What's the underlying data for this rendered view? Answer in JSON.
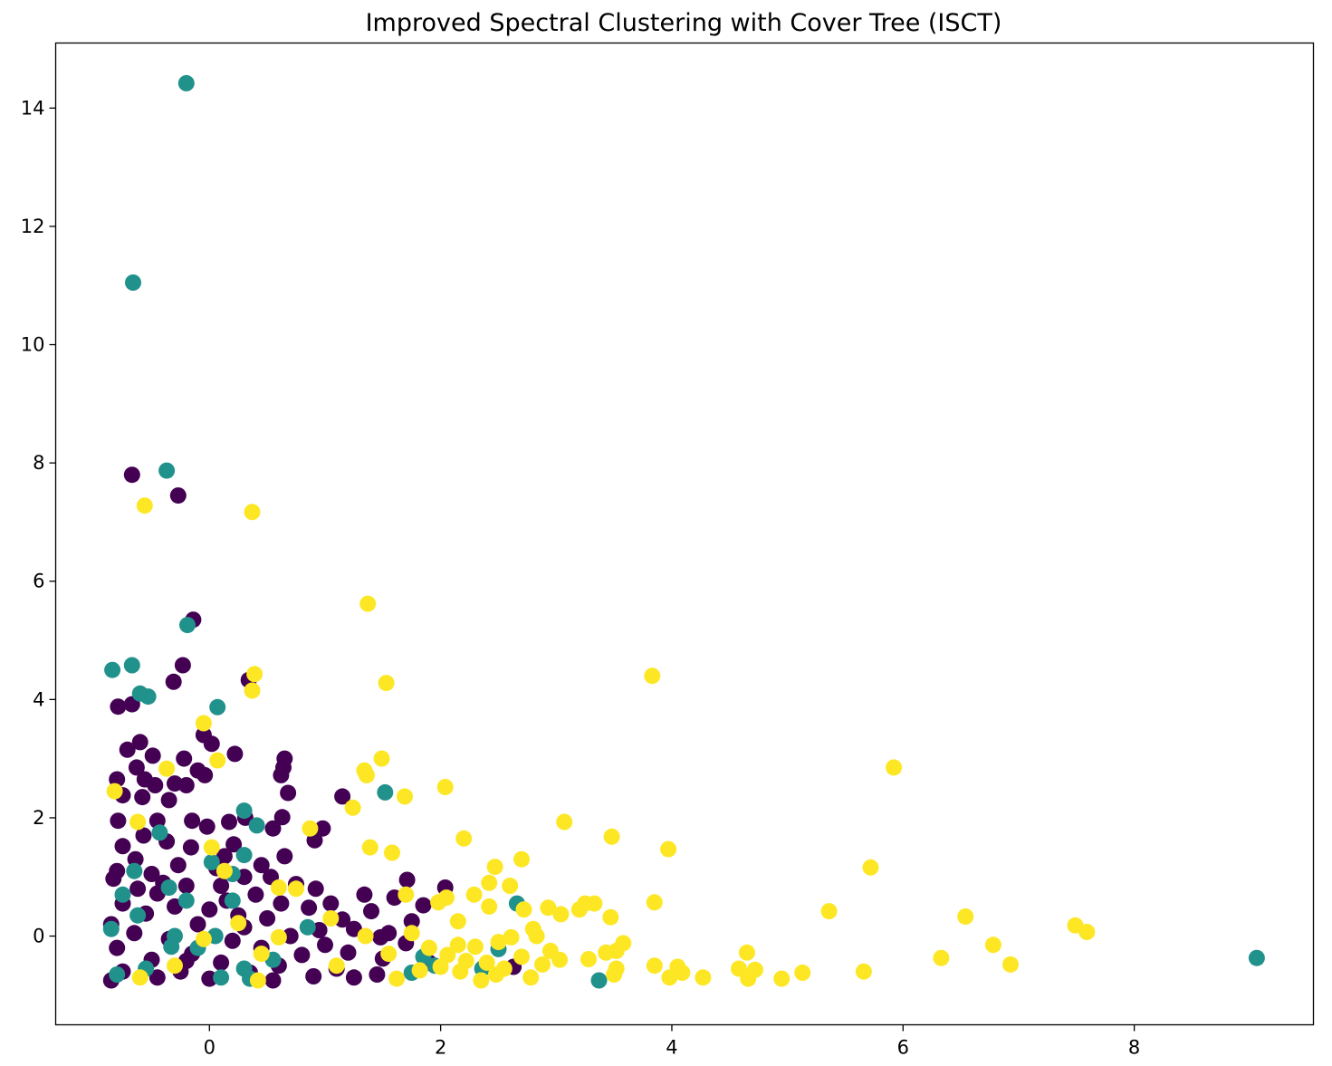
{
  "chart_data": {
    "type": "scatter",
    "title": "Improved Spectral Clustering with Cover Tree (ISCT)",
    "xlabel": "",
    "ylabel": "",
    "xlim": [
      -1.33,
      9.55
    ],
    "ylim": [
      -1.5,
      15.1
    ],
    "xticks": [
      0,
      2,
      4,
      6,
      8
    ],
    "yticks": [
      0,
      2,
      4,
      6,
      8,
      10,
      12,
      14
    ],
    "xtick_labels": [
      "0",
      "2",
      "4",
      "6",
      "8"
    ],
    "ytick_labels": [
      "0",
      "2",
      "4",
      "6",
      "8",
      "10",
      "12",
      "14"
    ],
    "grid": false,
    "legend": "none",
    "colors": {
      "cluster_0": "#440154",
      "cluster_1": "#21918c",
      "cluster_2": "#fde725"
    },
    "series": [
      {
        "color_key": "cluster_0",
        "points": [
          [
            -0.67,
            7.8
          ],
          [
            -0.27,
            7.45
          ],
          [
            -0.14,
            5.35
          ],
          [
            -0.23,
            4.58
          ],
          [
            0.34,
            4.33
          ],
          [
            -0.31,
            4.3
          ],
          [
            -0.67,
            3.92
          ],
          [
            -0.79,
            3.88
          ],
          [
            -0.05,
            3.4
          ],
          [
            0.02,
            3.25
          ],
          [
            -0.6,
            3.28
          ],
          [
            -0.71,
            3.15
          ],
          [
            -0.49,
            3.05
          ],
          [
            -0.22,
            3.0
          ],
          [
            0.22,
            3.08
          ],
          [
            0.65,
            3.0
          ],
          [
            0.64,
            2.85
          ],
          [
            -0.1,
            2.8
          ],
          [
            -0.04,
            2.72
          ],
          [
            0.62,
            2.72
          ],
          [
            -0.63,
            2.85
          ],
          [
            -0.8,
            2.65
          ],
          [
            -0.56,
            2.65
          ],
          [
            -0.47,
            2.55
          ],
          [
            -0.3,
            2.58
          ],
          [
            -0.2,
            2.55
          ],
          [
            -0.58,
            2.35
          ],
          [
            -0.35,
            2.3
          ],
          [
            -0.75,
            2.38
          ],
          [
            0.68,
            2.42
          ],
          [
            1.15,
            2.36
          ],
          [
            0.31,
            2.0
          ],
          [
            0.63,
            2.01
          ],
          [
            -0.45,
            1.95
          ],
          [
            -0.79,
            1.95
          ],
          [
            0.17,
            1.93
          ],
          [
            -0.15,
            1.95
          ],
          [
            -0.02,
            1.85
          ],
          [
            0.55,
            1.82
          ],
          [
            0.98,
            1.82
          ],
          [
            0.91,
            1.62
          ],
          [
            -0.57,
            1.7
          ],
          [
            -0.37,
            1.6
          ],
          [
            -0.75,
            1.52
          ],
          [
            -0.16,
            1.5
          ],
          [
            0.21,
            1.55
          ],
          [
            0.13,
            1.35
          ],
          [
            0.65,
            1.35
          ],
          [
            -0.64,
            1.3
          ],
          [
            -0.27,
            1.2
          ],
          [
            0.06,
            1.15
          ],
          [
            -0.8,
            1.1
          ],
          [
            -0.5,
            1.05
          ],
          [
            0.3,
            1.0
          ],
          [
            0.53,
            1.0
          ],
          [
            -0.83,
            0.97
          ],
          [
            1.71,
            0.95
          ],
          [
            0.75,
            0.88
          ],
          [
            -0.2,
            0.85
          ],
          [
            0.1,
            0.85
          ],
          [
            -0.62,
            0.8
          ],
          [
            0.92,
            0.8
          ],
          [
            2.04,
            0.82
          ],
          [
            1.34,
            0.7
          ],
          [
            -0.45,
            0.72
          ],
          [
            0.4,
            0.7
          ],
          [
            1.6,
            0.65
          ],
          [
            0.15,
            0.6
          ],
          [
            -0.75,
            0.55
          ],
          [
            0.62,
            0.55
          ],
          [
            1.05,
            0.55
          ],
          [
            1.85,
            0.52
          ],
          [
            -0.3,
            0.5
          ],
          [
            0.86,
            0.48
          ],
          [
            0.0,
            0.45
          ],
          [
            1.4,
            0.42
          ],
          [
            -0.55,
            0.38
          ],
          [
            0.5,
            0.3
          ],
          [
            1.15,
            0.28
          ],
          [
            1.75,
            0.25
          ],
          [
            -0.85,
            0.2
          ],
          [
            -0.1,
            0.2
          ],
          [
            0.3,
            0.15
          ],
          [
            0.95,
            0.1
          ],
          [
            1.25,
            0.12
          ],
          [
            1.55,
            0.05
          ],
          [
            -0.65,
            0.05
          ],
          [
            0.7,
            0.0
          ],
          [
            1.48,
            -0.02
          ],
          [
            -0.35,
            -0.05
          ],
          [
            0.2,
            -0.08
          ],
          [
            1.0,
            -0.15
          ],
          [
            1.7,
            -0.12
          ],
          [
            -0.8,
            -0.2
          ],
          [
            0.45,
            -0.2
          ],
          [
            1.2,
            -0.28
          ],
          [
            -0.15,
            -0.3
          ],
          [
            0.8,
            -0.32
          ],
          [
            1.5,
            -0.38
          ],
          [
            -0.5,
            -0.4
          ],
          [
            0.1,
            -0.45
          ],
          [
            1.9,
            -0.45
          ],
          [
            2.63,
            -0.52
          ],
          [
            0.6,
            -0.5
          ],
          [
            1.1,
            -0.55
          ],
          [
            -0.75,
            -0.6
          ],
          [
            -0.25,
            -0.6
          ],
          [
            0.35,
            -0.62
          ],
          [
            1.45,
            -0.65
          ],
          [
            0.9,
            -0.68
          ],
          [
            -0.45,
            -0.7
          ],
          [
            0.0,
            -0.72
          ],
          [
            1.25,
            -0.7
          ],
          [
            -0.85,
            -0.75
          ],
          [
            0.55,
            -0.75
          ],
          [
            -0.2,
            -0.42
          ],
          [
            0.25,
            0.35
          ],
          [
            -0.4,
            0.9
          ],
          [
            0.45,
            1.2
          ]
        ]
      },
      {
        "color_key": "cluster_1",
        "points": [
          [
            -0.2,
            14.42
          ],
          [
            -0.66,
            11.05
          ],
          [
            -0.37,
            7.87
          ],
          [
            -0.19,
            5.26
          ],
          [
            -0.84,
            4.5
          ],
          [
            -0.67,
            4.58
          ],
          [
            -0.6,
            4.1
          ],
          [
            -0.53,
            4.05
          ],
          [
            0.07,
            3.87
          ],
          [
            1.52,
            2.43
          ],
          [
            0.3,
            2.12
          ],
          [
            0.41,
            1.87
          ],
          [
            -0.43,
            1.75
          ],
          [
            0.3,
            1.37
          ],
          [
            -0.65,
            1.1
          ],
          [
            0.02,
            1.25
          ],
          [
            0.2,
            1.05
          ],
          [
            -0.35,
            0.82
          ],
          [
            -0.75,
            0.7
          ],
          [
            -0.2,
            0.6
          ],
          [
            0.2,
            0.6
          ],
          [
            2.66,
            0.55
          ],
          [
            -0.62,
            0.35
          ],
          [
            0.85,
            0.15
          ],
          [
            -0.85,
            0.12
          ],
          [
            0.05,
            0.0
          ],
          [
            -0.33,
            -0.18
          ],
          [
            2.5,
            -0.22
          ],
          [
            1.85,
            -0.35
          ],
          [
            9.06,
            -0.37
          ],
          [
            -0.1,
            -0.2
          ],
          [
            0.55,
            -0.4
          ],
          [
            0.3,
            -0.55
          ],
          [
            -0.55,
            -0.55
          ],
          [
            2.36,
            -0.55
          ],
          [
            1.75,
            -0.62
          ],
          [
            3.37,
            -0.75
          ],
          [
            0.1,
            -0.7
          ],
          [
            -0.8,
            -0.65
          ],
          [
            0.35,
            -0.72
          ],
          [
            1.95,
            -0.5
          ],
          [
            -0.3,
            0.0
          ]
        ]
      },
      {
        "color_key": "cluster_2",
        "points": [
          [
            -0.56,
            7.28
          ],
          [
            0.37,
            7.17
          ],
          [
            1.37,
            5.62
          ],
          [
            0.39,
            4.43
          ],
          [
            1.53,
            4.28
          ],
          [
            3.83,
            4.4
          ],
          [
            0.37,
            4.15
          ],
          [
            -0.05,
            3.6
          ],
          [
            1.49,
            3.0
          ],
          [
            0.07,
            2.97
          ],
          [
            5.92,
            2.85
          ],
          [
            -0.37,
            2.83
          ],
          [
            1.34,
            2.8
          ],
          [
            1.36,
            2.72
          ],
          [
            -0.82,
            2.45
          ],
          [
            2.04,
            2.52
          ],
          [
            1.69,
            2.36
          ],
          [
            1.24,
            2.17
          ],
          [
            -0.62,
            1.93
          ],
          [
            3.07,
            1.93
          ],
          [
            0.87,
            1.82
          ],
          [
            3.48,
            1.68
          ],
          [
            2.2,
            1.65
          ],
          [
            1.39,
            1.5
          ],
          [
            3.97,
            1.47
          ],
          [
            1.58,
            1.41
          ],
          [
            0.02,
            1.5
          ],
          [
            2.7,
            1.3
          ],
          [
            2.47,
            1.17
          ],
          [
            5.72,
            1.16
          ],
          [
            0.13,
            1.1
          ],
          [
            2.42,
            0.9
          ],
          [
            2.6,
            0.85
          ],
          [
            0.6,
            0.82
          ],
          [
            0.75,
            0.8
          ],
          [
            1.7,
            0.7
          ],
          [
            2.29,
            0.7
          ],
          [
            2.05,
            0.65
          ],
          [
            1.98,
            0.57
          ],
          [
            3.85,
            0.57
          ],
          [
            3.25,
            0.55
          ],
          [
            2.93,
            0.48
          ],
          [
            3.33,
            0.55
          ],
          [
            2.42,
            0.5
          ],
          [
            3.2,
            0.45
          ],
          [
            5.36,
            0.42
          ],
          [
            2.72,
            0.45
          ],
          [
            3.04,
            0.37
          ],
          [
            6.54,
            0.33
          ],
          [
            3.47,
            0.32
          ],
          [
            2.15,
            0.25
          ],
          [
            7.49,
            0.18
          ],
          [
            2.8,
            0.12
          ],
          [
            7.59,
            0.07
          ],
          [
            2.83,
            0.0
          ],
          [
            2.61,
            -0.02
          ],
          [
            1.35,
            0.0
          ],
          [
            1.75,
            0.05
          ],
          [
            -0.05,
            -0.05
          ],
          [
            0.6,
            -0.02
          ],
          [
            2.5,
            -0.1
          ],
          [
            3.58,
            -0.12
          ],
          [
            2.15,
            -0.15
          ],
          [
            6.78,
            -0.15
          ],
          [
            1.9,
            -0.2
          ],
          [
            2.3,
            -0.18
          ],
          [
            3.52,
            -0.25
          ],
          [
            3.43,
            -0.28
          ],
          [
            4.65,
            -0.28
          ],
          [
            1.55,
            -0.3
          ],
          [
            2.06,
            -0.32
          ],
          [
            6.33,
            -0.37
          ],
          [
            3.28,
            -0.39
          ],
          [
            2.7,
            -0.35
          ],
          [
            3.03,
            -0.4
          ],
          [
            2.22,
            -0.42
          ],
          [
            2.4,
            -0.45
          ],
          [
            6.93,
            -0.48
          ],
          [
            2.88,
            -0.48
          ],
          [
            3.85,
            -0.5
          ],
          [
            4.05,
            -0.52
          ],
          [
            1.1,
            -0.5
          ],
          [
            2.0,
            -0.52
          ],
          [
            2.55,
            -0.55
          ],
          [
            3.52,
            -0.55
          ],
          [
            4.58,
            -0.55
          ],
          [
            4.72,
            -0.57
          ],
          [
            5.66,
            -0.6
          ],
          [
            2.17,
            -0.6
          ],
          [
            4.09,
            -0.62
          ],
          [
            5.13,
            -0.62
          ],
          [
            2.48,
            -0.65
          ],
          [
            3.5,
            -0.65
          ],
          [
            2.78,
            -0.7
          ],
          [
            4.27,
            -0.7
          ],
          [
            4.66,
            -0.72
          ],
          [
            4.95,
            -0.72
          ],
          [
            3.98,
            -0.7
          ],
          [
            1.62,
            -0.72
          ],
          [
            0.42,
            -0.75
          ],
          [
            2.35,
            -0.75
          ],
          [
            -0.6,
            -0.7
          ],
          [
            0.25,
            0.22
          ],
          [
            -0.3,
            -0.5
          ],
          [
            1.05,
            0.3
          ],
          [
            0.45,
            -0.3
          ],
          [
            1.82,
            -0.58
          ],
          [
            2.95,
            -0.25
          ]
        ]
      }
    ]
  }
}
